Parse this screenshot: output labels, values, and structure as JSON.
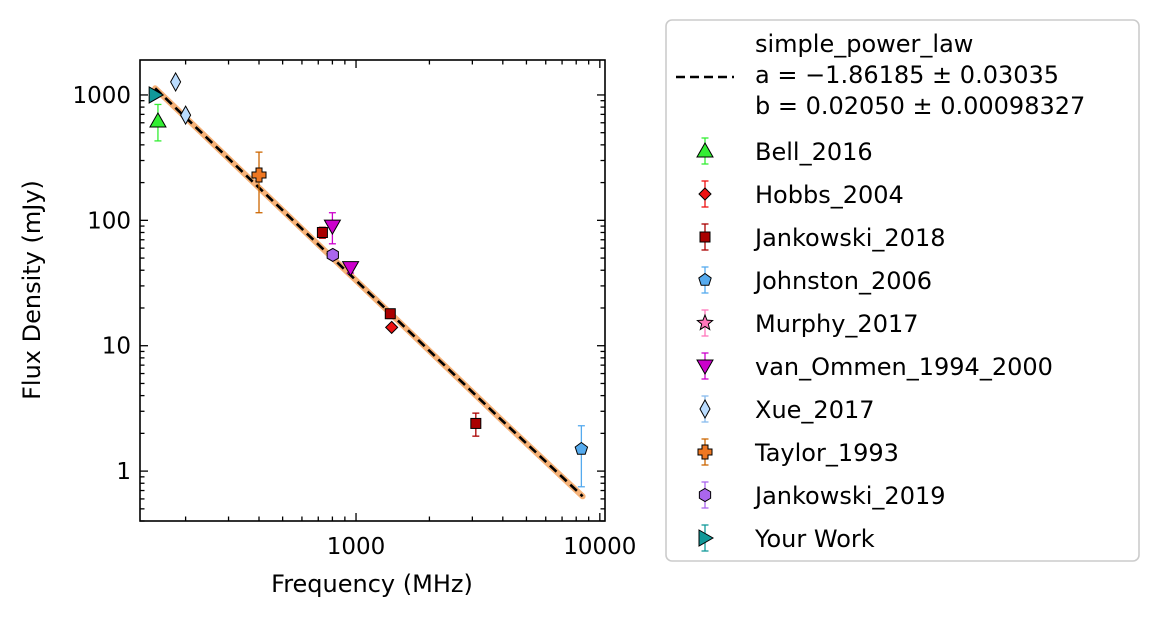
{
  "chart_data": {
    "type": "scatter",
    "title": "",
    "xlabel": "Frequency (MHz)",
    "ylabel": "Flux Density (mJy)",
    "xscale": "log",
    "yscale": "log",
    "xlim": [
      130,
      10500
    ],
    "ylim": [
      0.4,
      1900
    ],
    "x_ticks": [
      {
        "value": 1000,
        "label": "1000"
      },
      {
        "value": 10000,
        "label": "10000"
      }
    ],
    "y_ticks": [
      {
        "value": 1,
        "label": "1"
      },
      {
        "value": 10,
        "label": "10"
      },
      {
        "value": 100,
        "label": "100"
      },
      {
        "value": 1000,
        "label": "1000"
      }
    ],
    "legend_position": "outside-right",
    "fit": {
      "label_lines": [
        "simple_power_law",
        "a = −1.86185 ± 0.03035",
        "b = 0.02050 ± 0.00098327"
      ],
      "color": "#000000",
      "band_color": "#f4a460",
      "x_range": [
        150,
        8500
      ],
      "points": [
        [
          150,
          1130
        ],
        [
          300,
          311
        ],
        [
          600,
          85.5
        ],
        [
          1000,
          33.2
        ],
        [
          2000,
          9.1
        ],
        [
          4000,
          2.5
        ],
        [
          8500,
          0.63
        ]
      ]
    },
    "series": [
      {
        "name": "Bell_2016",
        "marker": "triangle-up",
        "color": "#33ee33",
        "errcolor": "#33ee33",
        "points": [
          {
            "x": 154,
            "y": 620,
            "ylo": 430,
            "yhi": 840
          }
        ]
      },
      {
        "name": "Hobbs_2004",
        "marker": "diamond",
        "color": "#ee1111",
        "errcolor": "#ee1111",
        "points": [
          {
            "x": 1400,
            "y": 14
          }
        ]
      },
      {
        "name": "Jankowski_2018",
        "marker": "square",
        "color": "#aa0000",
        "errcolor": "#aa0000",
        "points": [
          {
            "x": 728,
            "y": 80,
            "ylo": 72,
            "yhi": 88
          },
          {
            "x": 1382,
            "y": 18,
            "ylo": 16.5,
            "yhi": 19.5
          },
          {
            "x": 3100,
            "y": 2.4,
            "ylo": 1.9,
            "yhi": 2.9
          }
        ]
      },
      {
        "name": "Johnston_2006",
        "marker": "pentagon",
        "color": "#55aaee",
        "errcolor": "#55aaee",
        "points": [
          {
            "x": 8400,
            "y": 1.5,
            "ylo": 0.75,
            "yhi": 2.3
          }
        ]
      },
      {
        "name": "Murphy_2017",
        "marker": "star",
        "color": "#ff77bb",
        "errcolor": "#ff77bb",
        "points": []
      },
      {
        "name": "van_Ommen_1994_2000",
        "marker": "triangle-down",
        "color": "#cc00cc",
        "errcolor": "#cc00cc",
        "points": [
          {
            "x": 800,
            "y": 90,
            "ylo": 65,
            "yhi": 115
          },
          {
            "x": 950,
            "y": 42,
            "ylo": 38,
            "yhi": 46
          }
        ]
      },
      {
        "name": "Xue_2017",
        "marker": "thin-diamond",
        "color": "#bbddff",
        "errcolor": "#88bbee",
        "points": [
          {
            "x": 182,
            "y": 1270
          },
          {
            "x": 200,
            "y": 690
          }
        ]
      },
      {
        "name": "Taylor_1993",
        "marker": "plus",
        "color": "#ee7722",
        "errcolor": "#cc6600",
        "points": [
          {
            "x": 400,
            "y": 230,
            "ylo": 115,
            "yhi": 350
          }
        ]
      },
      {
        "name": "Jankowski_2019",
        "marker": "hexagon",
        "color": "#aa66ee",
        "errcolor": "#aa66ee",
        "points": [
          {
            "x": 803,
            "y": 53
          }
        ]
      },
      {
        "name": "Your Work",
        "marker": "triangle-right",
        "color": "#119999",
        "errcolor": "#119999",
        "points": [
          {
            "x": 150,
            "y": 1000
          }
        ]
      }
    ]
  }
}
